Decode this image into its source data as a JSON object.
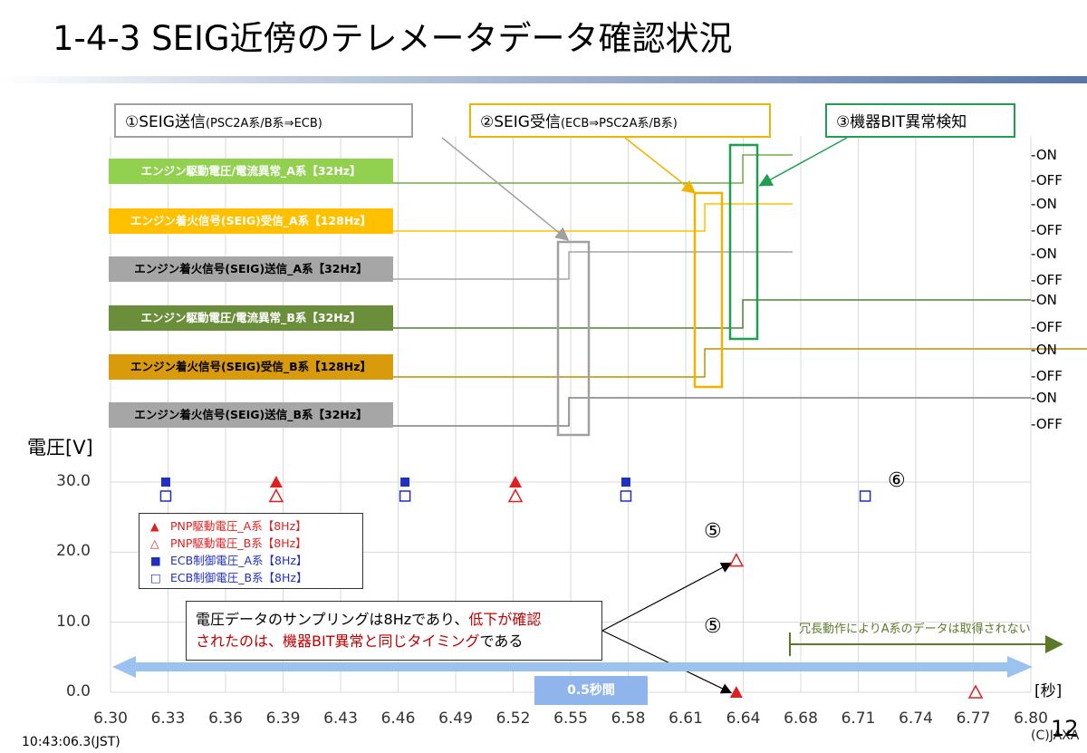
{
  "title": "1-4-3 SEIG近傍のテレメータデータ確認状況",
  "phases": [
    {
      "label": "①SEIG送信",
      "sub": "(PSC2A系/B系⇒ECB)",
      "color": "#a0a0a0"
    },
    {
      "label": "②SEIG受信",
      "sub": "(ECB⇒PSC2A系/B系)",
      "color": "#f0b400"
    },
    {
      "label": "③機器BIT異常検知",
      "sub": "",
      "color": "#1e9e50"
    }
  ],
  "signals": [
    {
      "label": "エンジン駆動電圧/電流異常_A系【32Hz】",
      "bg": "#92d050",
      "fg": "#ffffff",
      "line": "#70ad47"
    },
    {
      "label": "エンジン着火信号(SEIG)受信_A系【128Hz】",
      "bg": "#ffc000",
      "fg": "#ffffff",
      "line": "#ffc000"
    },
    {
      "label": "エンジン着火信号(SEIG)送信_A系【32Hz】",
      "bg": "#a6a6a6",
      "fg": "#000000",
      "line": "#a6a6a6"
    },
    {
      "label": "エンジン駆動電圧/電流異常_B系【32Hz】",
      "bg": "#6b8e3a",
      "fg": "#ffffff",
      "line": "#548235"
    },
    {
      "label": "エンジン着火信号(SEIG)受信_B系【128Hz】",
      "bg": "#d99a0c",
      "fg": "#000000",
      "line": "#bf9000"
    },
    {
      "label": "エンジン着火信号(SEIG)送信_B系【32Hz】",
      "bg": "#a6a6a6",
      "fg": "#000000",
      "line": "#7f7f7f"
    }
  ],
  "on_label": "-ON",
  "off_label": "-OFF",
  "chart_data": {
    "type": "scatter",
    "ylabel": "電圧[V]",
    "xlabel": "[秒]",
    "xlim": [
      6.3,
      6.8
    ],
    "ylim": [
      0,
      30
    ],
    "x_ticks": [
      "6.30",
      "6.33",
      "6.36",
      "6.39",
      "6.43",
      "6.46",
      "6.49",
      "6.52",
      "6.55",
      "6.58",
      "6.61",
      "6.64",
      "6.68",
      "6.71",
      "6.74",
      "6.77",
      "6.80"
    ],
    "y_ticks": [
      "0.0",
      "10.0",
      "20.0",
      "30.0"
    ],
    "series": [
      {
        "name": "PNP駆動電圧_A系【8Hz】",
        "marker": "triangle-filled",
        "color": "#e02020",
        "points": [
          [
            6.39,
            30.0
          ],
          [
            6.52,
            30.0
          ],
          [
            6.64,
            0.0
          ]
        ]
      },
      {
        "name": "PNP駆動電圧_B系【8Hz】",
        "marker": "triangle-open",
        "color": "#e02020",
        "points": [
          [
            6.39,
            28.0
          ],
          [
            6.52,
            28.0
          ],
          [
            6.64,
            18.8
          ],
          [
            6.77,
            0.0
          ]
        ]
      },
      {
        "name": "ECB制御電圧_A系【8Hz】",
        "marker": "square-filled",
        "color": "#1f2fbf",
        "points": [
          [
            6.33,
            30.0
          ],
          [
            6.46,
            30.0
          ],
          [
            6.58,
            30.0
          ]
        ]
      },
      {
        "name": "ECB制御電圧_B系【8Hz】",
        "marker": "square-open",
        "color": "#1f2fbf",
        "points": [
          [
            6.33,
            28.0
          ],
          [
            6.46,
            28.0
          ],
          [
            6.58,
            28.0
          ],
          [
            6.71,
            28.0
          ]
        ]
      }
    ]
  },
  "legend": [
    {
      "mark": "▲",
      "text": "PNP駆動電圧_A系【8Hz】",
      "color": "#e02020"
    },
    {
      "mark": "△",
      "text": "PNP駆動電圧_B系【8Hz】",
      "color": "#e02020"
    },
    {
      "mark": "■",
      "text": "ECB制御電圧_A系【8Hz】",
      "color": "#1f2fbf"
    },
    {
      "mark": "□",
      "text": "ECB制御電圧_B系【8Hz】",
      "color": "#1f2fbf"
    }
  ],
  "note": {
    "part1": "電圧データのサンプリングは8Hzであり、",
    "part2": "低下が確認",
    "part3": "されたのは、機器BIT異常と同じタイミング",
    "part4": "である"
  },
  "annotations": {
    "five": "⑤",
    "six": "⑥",
    "redundant": "冗長動作によりA系のデータは取得されない",
    "half_second": "0.5秒間"
  },
  "timestamp": "10:43:06.3(JST)",
  "copyright": "(C)JAXA",
  "page_number": "12"
}
